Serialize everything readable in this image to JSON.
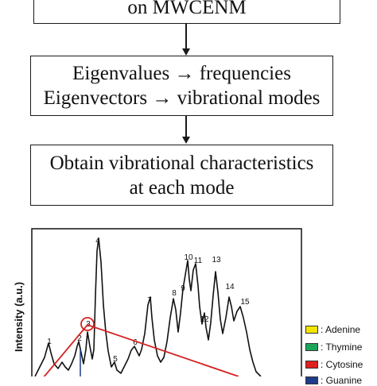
{
  "flowchart": {
    "box1_line1": "on MWCENM",
    "box2_line1": "Eigenvalues → frequencies",
    "box2_line2": "Eigenvectors → vibrational modes",
    "box3_line1": "Obtain vibrational characteristics",
    "box3_line2": "at each mode"
  },
  "spectrum": {
    "ylabel": "Intensity (a.u.)",
    "peak_labels": [
      "1",
      "2",
      "3",
      "4",
      "5",
      "6",
      "7",
      "8",
      "9",
      "10",
      "11",
      "12",
      "13",
      "14",
      "15"
    ],
    "highlight_color": "#d62020"
  },
  "legend": [
    {
      "label": ": Adenine",
      "color": "#f2e600"
    },
    {
      "label": ": Thymine",
      "color": "#1aa65a"
    },
    {
      "label": ": Cytosine",
      "color": "#e02020"
    },
    {
      "label": ": Guanine",
      "color": "#1f3c8c"
    }
  ]
}
